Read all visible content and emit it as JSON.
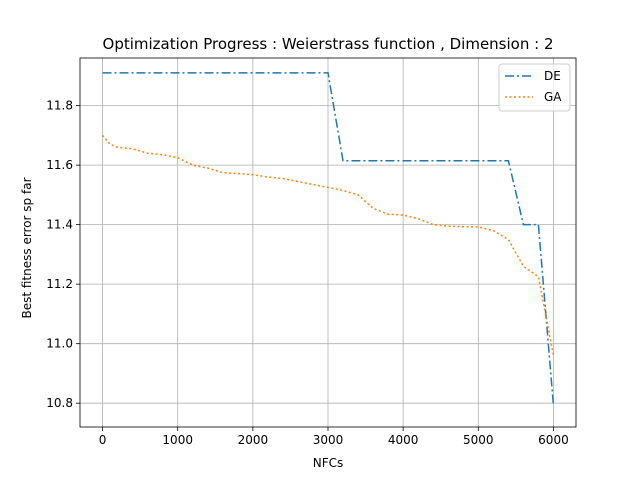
{
  "chart_data": {
    "type": "line",
    "title": "Optimization Progress : Weierstrass function , Dimension : 2",
    "xlabel": "NFCs",
    "ylabel": "Best fitness error sp far",
    "xlim": [
      -300,
      6300
    ],
    "ylim": [
      10.72,
      11.96
    ],
    "xticks": [
      0,
      1000,
      2000,
      3000,
      4000,
      5000,
      6000
    ],
    "yticks": [
      10.8,
      11.0,
      11.2,
      11.4,
      11.6,
      11.8
    ],
    "grid": true,
    "legend_position": "top-right",
    "series": [
      {
        "name": "DE",
        "color": "#1f77b4",
        "dash": "dashdot",
        "x": [
          0,
          3000,
          3200,
          5400,
          5600,
          5800,
          6000
        ],
        "y": [
          11.91,
          11.91,
          11.615,
          11.615,
          11.4,
          11.4,
          10.79
        ]
      },
      {
        "name": "GA",
        "color": "#ff7f0e",
        "dash": "dotted",
        "x": [
          0,
          100,
          200,
          400,
          600,
          800,
          1000,
          1200,
          1400,
          1600,
          1800,
          2000,
          2200,
          2400,
          2600,
          2800,
          3000,
          3200,
          3400,
          3600,
          3800,
          4000,
          4200,
          4400,
          4600,
          4800,
          5000,
          5200,
          5400,
          5600,
          5800,
          6000
        ],
        "y": [
          11.7,
          11.67,
          11.66,
          11.655,
          11.64,
          11.635,
          11.625,
          11.6,
          11.59,
          11.575,
          11.572,
          11.568,
          11.56,
          11.555,
          11.545,
          11.535,
          11.525,
          11.515,
          11.5,
          11.455,
          11.435,
          11.432,
          11.42,
          11.4,
          11.395,
          11.393,
          11.392,
          11.38,
          11.35,
          11.26,
          11.225,
          10.96
        ]
      }
    ]
  }
}
